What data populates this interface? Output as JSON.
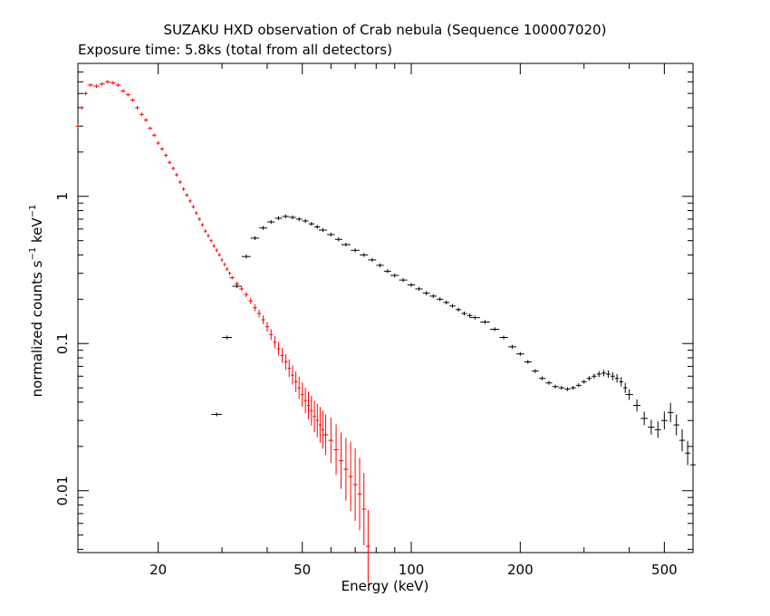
{
  "chart_data": {
    "type": "scatter",
    "title": "SUZAKU HXD observation of Crab nebula (Sequence 100007020)",
    "subtitle": "Exposure time: 5.8ks (total from all detectors)",
    "xlabel": "Energy (keV)",
    "ylabel_main": "normalized counts s",
    "ylabel_sup1": "−1",
    "ylabel_mid": " keV",
    "ylabel_sup2": "−1",
    "x_scale": "log",
    "y_scale": "log",
    "xlim": [
      12,
      600
    ],
    "ylim": [
      0.0038,
      8
    ],
    "x_ticks": [
      {
        "v": 20,
        "label": "20"
      },
      {
        "v": 50,
        "label": "50"
      },
      {
        "v": 100,
        "label": "100"
      },
      {
        "v": 200,
        "label": "200"
      },
      {
        "v": 500,
        "label": "500"
      }
    ],
    "y_ticks": [
      {
        "v": 0.01,
        "label": "0.01"
      },
      {
        "v": 0.1,
        "label": "0.1"
      },
      {
        "v": 1,
        "label": "1"
      }
    ],
    "grid": false,
    "legend": "none",
    "series": [
      {
        "color": "#ff0000",
        "points": [
          [
            12.0,
            3.0
          ],
          [
            12.3,
            4.0
          ],
          [
            12.6,
            5.0
          ],
          [
            13.0,
            5.7
          ],
          [
            13.5,
            5.6
          ],
          [
            14.0,
            5.8
          ],
          [
            14.5,
            6.0
          ],
          [
            15.0,
            5.9
          ],
          [
            15.5,
            5.7
          ],
          [
            16.0,
            5.2
          ],
          [
            16.5,
            4.9
          ],
          [
            17.0,
            4.5
          ],
          [
            17.5,
            4.0
          ],
          [
            18.0,
            3.6
          ],
          [
            18.5,
            3.3
          ],
          [
            19.0,
            2.9
          ],
          [
            19.5,
            2.6
          ],
          [
            20.0,
            2.3
          ],
          [
            20.5,
            2.1
          ],
          [
            21.0,
            1.9
          ],
          [
            21.5,
            1.7
          ],
          [
            22.0,
            1.55
          ],
          [
            22.5,
            1.4
          ],
          [
            23.0,
            1.25
          ],
          [
            23.5,
            1.12
          ],
          [
            24.0,
            1.02
          ],
          [
            24.5,
            0.93
          ],
          [
            25.0,
            0.85
          ],
          [
            25.5,
            0.77
          ],
          [
            26.0,
            0.7
          ],
          [
            26.5,
            0.64
          ],
          [
            27.0,
            0.58
          ],
          [
            27.5,
            0.54
          ],
          [
            28.0,
            0.5
          ],
          [
            28.5,
            0.46
          ],
          [
            29.0,
            0.43
          ],
          [
            29.5,
            0.4
          ],
          [
            30.0,
            0.37
          ],
          [
            30.5,
            0.345
          ],
          [
            31.0,
            0.32
          ],
          [
            31.5,
            0.3
          ],
          [
            32.0,
            0.28
          ],
          [
            33.0,
            0.255
          ],
          [
            34.0,
            0.235
          ],
          [
            35.0,
            0.215
          ],
          [
            36.0,
            0.195
          ],
          [
            37.0,
            0.175
          ],
          [
            38.0,
            0.16
          ],
          [
            39.0,
            0.145
          ],
          [
            40.0,
            0.13
          ],
          [
            41.0,
            0.115
          ],
          [
            42.0,
            0.102
          ],
          [
            43.0,
            0.092
          ],
          [
            44.0,
            0.083
          ],
          [
            45.0,
            0.075
          ],
          [
            46.0,
            0.068
          ],
          [
            47.0,
            0.061
          ],
          [
            48.0,
            0.055
          ],
          [
            49.0,
            0.05
          ],
          [
            50.0,
            0.045
          ],
          [
            51.0,
            0.041
          ],
          [
            52.0,
            0.038
          ],
          [
            53.0,
            0.035
          ],
          [
            54.0,
            0.032
          ],
          [
            55.0,
            0.03
          ],
          [
            56.0,
            0.028
          ],
          [
            57.0,
            0.026
          ],
          [
            58.0,
            0.024
          ],
          [
            60.0,
            0.022
          ],
          [
            62.0,
            0.019
          ],
          [
            64.0,
            0.016
          ],
          [
            66.0,
            0.014
          ],
          [
            68.0,
            0.0125
          ],
          [
            70.0,
            0.011
          ],
          [
            72.0,
            0.0095
          ],
          [
            74.0,
            0.0075
          ],
          [
            76.0,
            0.0042
          ]
        ]
      },
      {
        "color": "#000000",
        "points": [
          [
            29.0,
            0.033
          ],
          [
            31.0,
            0.11
          ],
          [
            33.0,
            0.245
          ],
          [
            35.0,
            0.39
          ],
          [
            37.0,
            0.52
          ],
          [
            39.0,
            0.61
          ],
          [
            41.0,
            0.67
          ],
          [
            43.0,
            0.71
          ],
          [
            45.0,
            0.73
          ],
          [
            47.0,
            0.72
          ],
          [
            49.0,
            0.7
          ],
          [
            51.0,
            0.68
          ],
          [
            53.0,
            0.65
          ],
          [
            55.0,
            0.62
          ],
          [
            57.0,
            0.59
          ],
          [
            60.0,
            0.55
          ],
          [
            63.0,
            0.51
          ],
          [
            66.0,
            0.47
          ],
          [
            70.0,
            0.43
          ],
          [
            74.0,
            0.4
          ],
          [
            78.0,
            0.37
          ],
          [
            82.0,
            0.34
          ],
          [
            86.0,
            0.31
          ],
          [
            90.0,
            0.29
          ],
          [
            95.0,
            0.27
          ],
          [
            100.0,
            0.25
          ],
          [
            105.0,
            0.235
          ],
          [
            110.0,
            0.22
          ],
          [
            115.0,
            0.21
          ],
          [
            120.0,
            0.2
          ],
          [
            125.0,
            0.19
          ],
          [
            130.0,
            0.18
          ],
          [
            135.0,
            0.17
          ],
          [
            140.0,
            0.16
          ],
          [
            145.0,
            0.155
          ],
          [
            150.0,
            0.15
          ],
          [
            160.0,
            0.14
          ],
          [
            170.0,
            0.125
          ],
          [
            180.0,
            0.11
          ],
          [
            190.0,
            0.095
          ],
          [
            200.0,
            0.085
          ],
          [
            210.0,
            0.075
          ],
          [
            220.0,
            0.065
          ],
          [
            230.0,
            0.058
          ],
          [
            240.0,
            0.054
          ],
          [
            250.0,
            0.051
          ],
          [
            260.0,
            0.05
          ],
          [
            270.0,
            0.049
          ],
          [
            280.0,
            0.05
          ],
          [
            290.0,
            0.052
          ],
          [
            300.0,
            0.055
          ],
          [
            310.0,
            0.058
          ],
          [
            320.0,
            0.06
          ],
          [
            330.0,
            0.062
          ],
          [
            340.0,
            0.063
          ],
          [
            350.0,
            0.062
          ],
          [
            360.0,
            0.06
          ],
          [
            370.0,
            0.058
          ],
          [
            380.0,
            0.055
          ],
          [
            390.0,
            0.05
          ],
          [
            400.0,
            0.045
          ],
          [
            420.0,
            0.038
          ],
          [
            440.0,
            0.031
          ],
          [
            460.0,
            0.027
          ],
          [
            480.0,
            0.026
          ],
          [
            500.0,
            0.03
          ],
          [
            520.0,
            0.034
          ],
          [
            540.0,
            0.028
          ],
          [
            560.0,
            0.022
          ],
          [
            580.0,
            0.018
          ],
          [
            600.0,
            0.015
          ]
        ]
      }
    ]
  }
}
